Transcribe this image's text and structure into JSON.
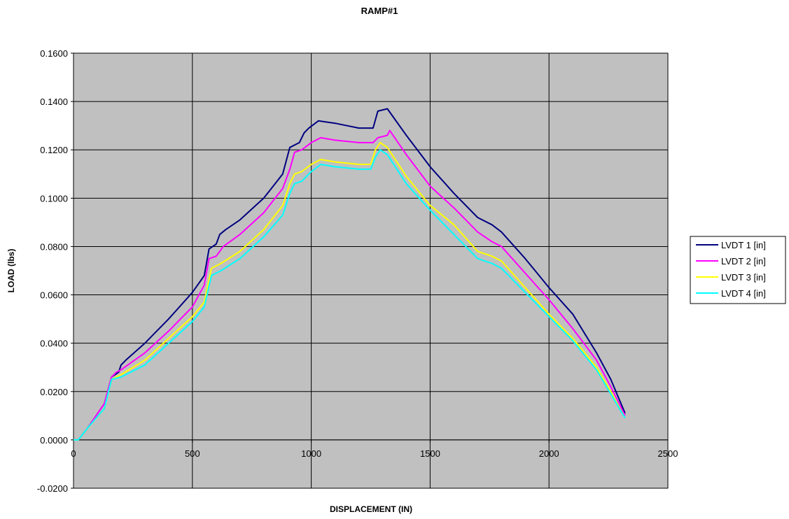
{
  "chart_data": {
    "type": "line",
    "title": "RAMP#1",
    "xlabel": "DISPLACEMENT (IN)",
    "ylabel": "LOAD (lbs)",
    "xlim": [
      0,
      2500
    ],
    "ylim": [
      -0.02,
      0.16
    ],
    "x_ticks": [
      0,
      500,
      1000,
      1500,
      2000,
      2500
    ],
    "x_tick_labels": [
      "0",
      "500",
      "1000",
      "1500",
      "2000",
      "2500"
    ],
    "y_ticks": [
      -0.02,
      0.0,
      0.02,
      0.04,
      0.06,
      0.08,
      0.1,
      0.12,
      0.14,
      0.16
    ],
    "y_tick_labels": [
      "-0.0200",
      "0.0000",
      "0.0200",
      "0.0400",
      "0.0600",
      "0.0800",
      "0.1000",
      "0.1200",
      "0.1400",
      "0.1600"
    ],
    "grid": true,
    "plot_background": "#C0C0C0",
    "legend_position": "right",
    "series": [
      {
        "name": "LVDT 1 [in]",
        "color": "#000080",
        "points": [
          [
            0,
            0
          ],
          [
            20,
            0
          ],
          [
            60,
            0.005
          ],
          [
            130,
            0.015
          ],
          [
            160,
            0.026
          ],
          [
            190,
            0.028
          ],
          [
            200,
            0.031
          ],
          [
            220,
            0.033
          ],
          [
            300,
            0.04
          ],
          [
            400,
            0.05
          ],
          [
            500,
            0.061
          ],
          [
            550,
            0.068
          ],
          [
            570,
            0.079
          ],
          [
            600,
            0.081
          ],
          [
            615,
            0.085
          ],
          [
            640,
            0.087
          ],
          [
            700,
            0.091
          ],
          [
            800,
            0.1
          ],
          [
            880,
            0.11
          ],
          [
            910,
            0.121
          ],
          [
            950,
            0.123
          ],
          [
            970,
            0.127
          ],
          [
            990,
            0.129
          ],
          [
            1030,
            0.132
          ],
          [
            1100,
            0.131
          ],
          [
            1200,
            0.129
          ],
          [
            1260,
            0.129
          ],
          [
            1280,
            0.136
          ],
          [
            1320,
            0.137
          ],
          [
            1400,
            0.126
          ],
          [
            1500,
            0.113
          ],
          [
            1600,
            0.102
          ],
          [
            1700,
            0.092
          ],
          [
            1760,
            0.089
          ],
          [
            1800,
            0.086
          ],
          [
            1900,
            0.075
          ],
          [
            2000,
            0.063
          ],
          [
            2100,
            0.052
          ],
          [
            2200,
            0.036
          ],
          [
            2260,
            0.025
          ],
          [
            2320,
            0.011
          ]
        ]
      },
      {
        "name": "LVDT 2 [in]",
        "color": "#FF00FF",
        "points": [
          [
            0,
            0
          ],
          [
            20,
            0
          ],
          [
            60,
            0.005
          ],
          [
            130,
            0.015
          ],
          [
            160,
            0.026
          ],
          [
            180,
            0.028
          ],
          [
            200,
            0.029
          ],
          [
            300,
            0.036
          ],
          [
            400,
            0.045
          ],
          [
            500,
            0.055
          ],
          [
            550,
            0.064
          ],
          [
            570,
            0.075
          ],
          [
            600,
            0.076
          ],
          [
            630,
            0.08
          ],
          [
            700,
            0.085
          ],
          [
            800,
            0.094
          ],
          [
            880,
            0.104
          ],
          [
            910,
            0.112
          ],
          [
            930,
            0.119
          ],
          [
            960,
            0.12
          ],
          [
            1000,
            0.123
          ],
          [
            1040,
            0.125
          ],
          [
            1100,
            0.124
          ],
          [
            1200,
            0.123
          ],
          [
            1260,
            0.123
          ],
          [
            1280,
            0.125
          ],
          [
            1320,
            0.126
          ],
          [
            1330,
            0.128
          ],
          [
            1400,
            0.118
          ],
          [
            1500,
            0.105
          ],
          [
            1600,
            0.096
          ],
          [
            1700,
            0.086
          ],
          [
            1760,
            0.082
          ],
          [
            1800,
            0.08
          ],
          [
            1900,
            0.069
          ],
          [
            2000,
            0.058
          ],
          [
            2100,
            0.046
          ],
          [
            2200,
            0.033
          ],
          [
            2260,
            0.022
          ],
          [
            2320,
            0.01
          ]
        ]
      },
      {
        "name": "LVDT 3 [in]",
        "color": "#FFFF00",
        "points": [
          [
            0,
            0
          ],
          [
            20,
            0
          ],
          [
            60,
            0.005
          ],
          [
            130,
            0.013
          ],
          [
            160,
            0.025
          ],
          [
            200,
            0.027
          ],
          [
            300,
            0.033
          ],
          [
            400,
            0.042
          ],
          [
            500,
            0.051
          ],
          [
            550,
            0.057
          ],
          [
            580,
            0.071
          ],
          [
            620,
            0.073
          ],
          [
            700,
            0.078
          ],
          [
            800,
            0.087
          ],
          [
            880,
            0.097
          ],
          [
            910,
            0.106
          ],
          [
            930,
            0.11
          ],
          [
            960,
            0.111
          ],
          [
            1000,
            0.114
          ],
          [
            1040,
            0.116
          ],
          [
            1100,
            0.115
          ],
          [
            1200,
            0.114
          ],
          [
            1250,
            0.114
          ],
          [
            1270,
            0.12
          ],
          [
            1290,
            0.123
          ],
          [
            1320,
            0.121
          ],
          [
            1400,
            0.109
          ],
          [
            1500,
            0.097
          ],
          [
            1600,
            0.089
          ],
          [
            1700,
            0.078
          ],
          [
            1760,
            0.076
          ],
          [
            1800,
            0.074
          ],
          [
            1900,
            0.063
          ],
          [
            2000,
            0.052
          ],
          [
            2100,
            0.042
          ],
          [
            2200,
            0.03
          ],
          [
            2260,
            0.02
          ],
          [
            2320,
            0.009
          ]
        ]
      },
      {
        "name": "LVDT 4 [in]",
        "color": "#00FFFF",
        "points": [
          [
            0,
            0
          ],
          [
            20,
            0
          ],
          [
            60,
            0.005
          ],
          [
            130,
            0.013
          ],
          [
            160,
            0.025
          ],
          [
            200,
            0.026
          ],
          [
            300,
            0.031
          ],
          [
            400,
            0.04
          ],
          [
            500,
            0.049
          ],
          [
            550,
            0.055
          ],
          [
            580,
            0.068
          ],
          [
            620,
            0.07
          ],
          [
            700,
            0.075
          ],
          [
            800,
            0.084
          ],
          [
            880,
            0.093
          ],
          [
            910,
            0.102
          ],
          [
            930,
            0.106
          ],
          [
            960,
            0.107
          ],
          [
            1000,
            0.111
          ],
          [
            1040,
            0.114
          ],
          [
            1100,
            0.113
          ],
          [
            1200,
            0.112
          ],
          [
            1250,
            0.112
          ],
          [
            1270,
            0.117
          ],
          [
            1290,
            0.12
          ],
          [
            1320,
            0.118
          ],
          [
            1400,
            0.106
          ],
          [
            1500,
            0.095
          ],
          [
            1600,
            0.085
          ],
          [
            1700,
            0.075
          ],
          [
            1760,
            0.073
          ],
          [
            1800,
            0.071
          ],
          [
            1900,
            0.061
          ],
          [
            2000,
            0.051
          ],
          [
            2100,
            0.041
          ],
          [
            2200,
            0.029
          ],
          [
            2260,
            0.019
          ],
          [
            2320,
            0.009
          ]
        ]
      }
    ]
  }
}
